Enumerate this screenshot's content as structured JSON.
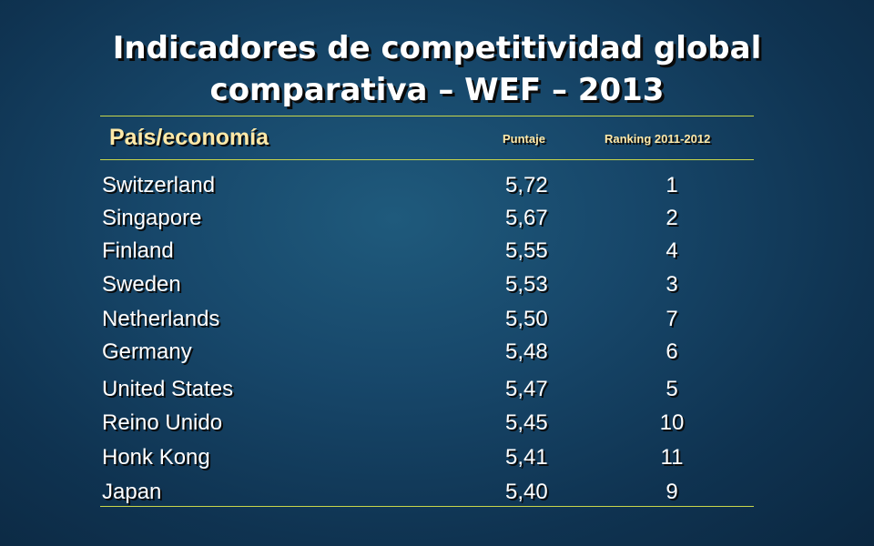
{
  "title": {
    "line1": "Indicadores de competitividad global",
    "line2": "comparativa – WEF – 2013"
  },
  "table": {
    "headers": {
      "country": "País/economía",
      "score": "Puntaje",
      "rank": "Ranking  2011-2012"
    },
    "rows": [
      {
        "country": "Switzerland",
        "score": "5,72",
        "rank": "1"
      },
      {
        "country": "Singapore",
        "score": "5,67",
        "rank": "2"
      },
      {
        "country": "Finland",
        "score": "5,55",
        "rank": "4"
      },
      {
        "country": "Sweden",
        "score": "5,53",
        "rank": "3"
      },
      {
        "country": "Netherlands",
        "score": "5,50",
        "rank": "7"
      },
      {
        "country": "Germany",
        "score": "5,48",
        "rank": "6"
      },
      {
        "country": "United States",
        "score": "5,47",
        "rank": "5"
      },
      {
        "country": "Reino Unido",
        "score": "5,45",
        "rank": "10"
      },
      {
        "country": "Honk Kong",
        "score": "5,41",
        "rank": "11"
      },
      {
        "country": "Japan",
        "score": "5,40",
        "rank": "9"
      }
    ]
  },
  "colors": {
    "header_text": "#ffe9a8",
    "rule": "#c8d64b",
    "body_text": "#ffffff"
  }
}
